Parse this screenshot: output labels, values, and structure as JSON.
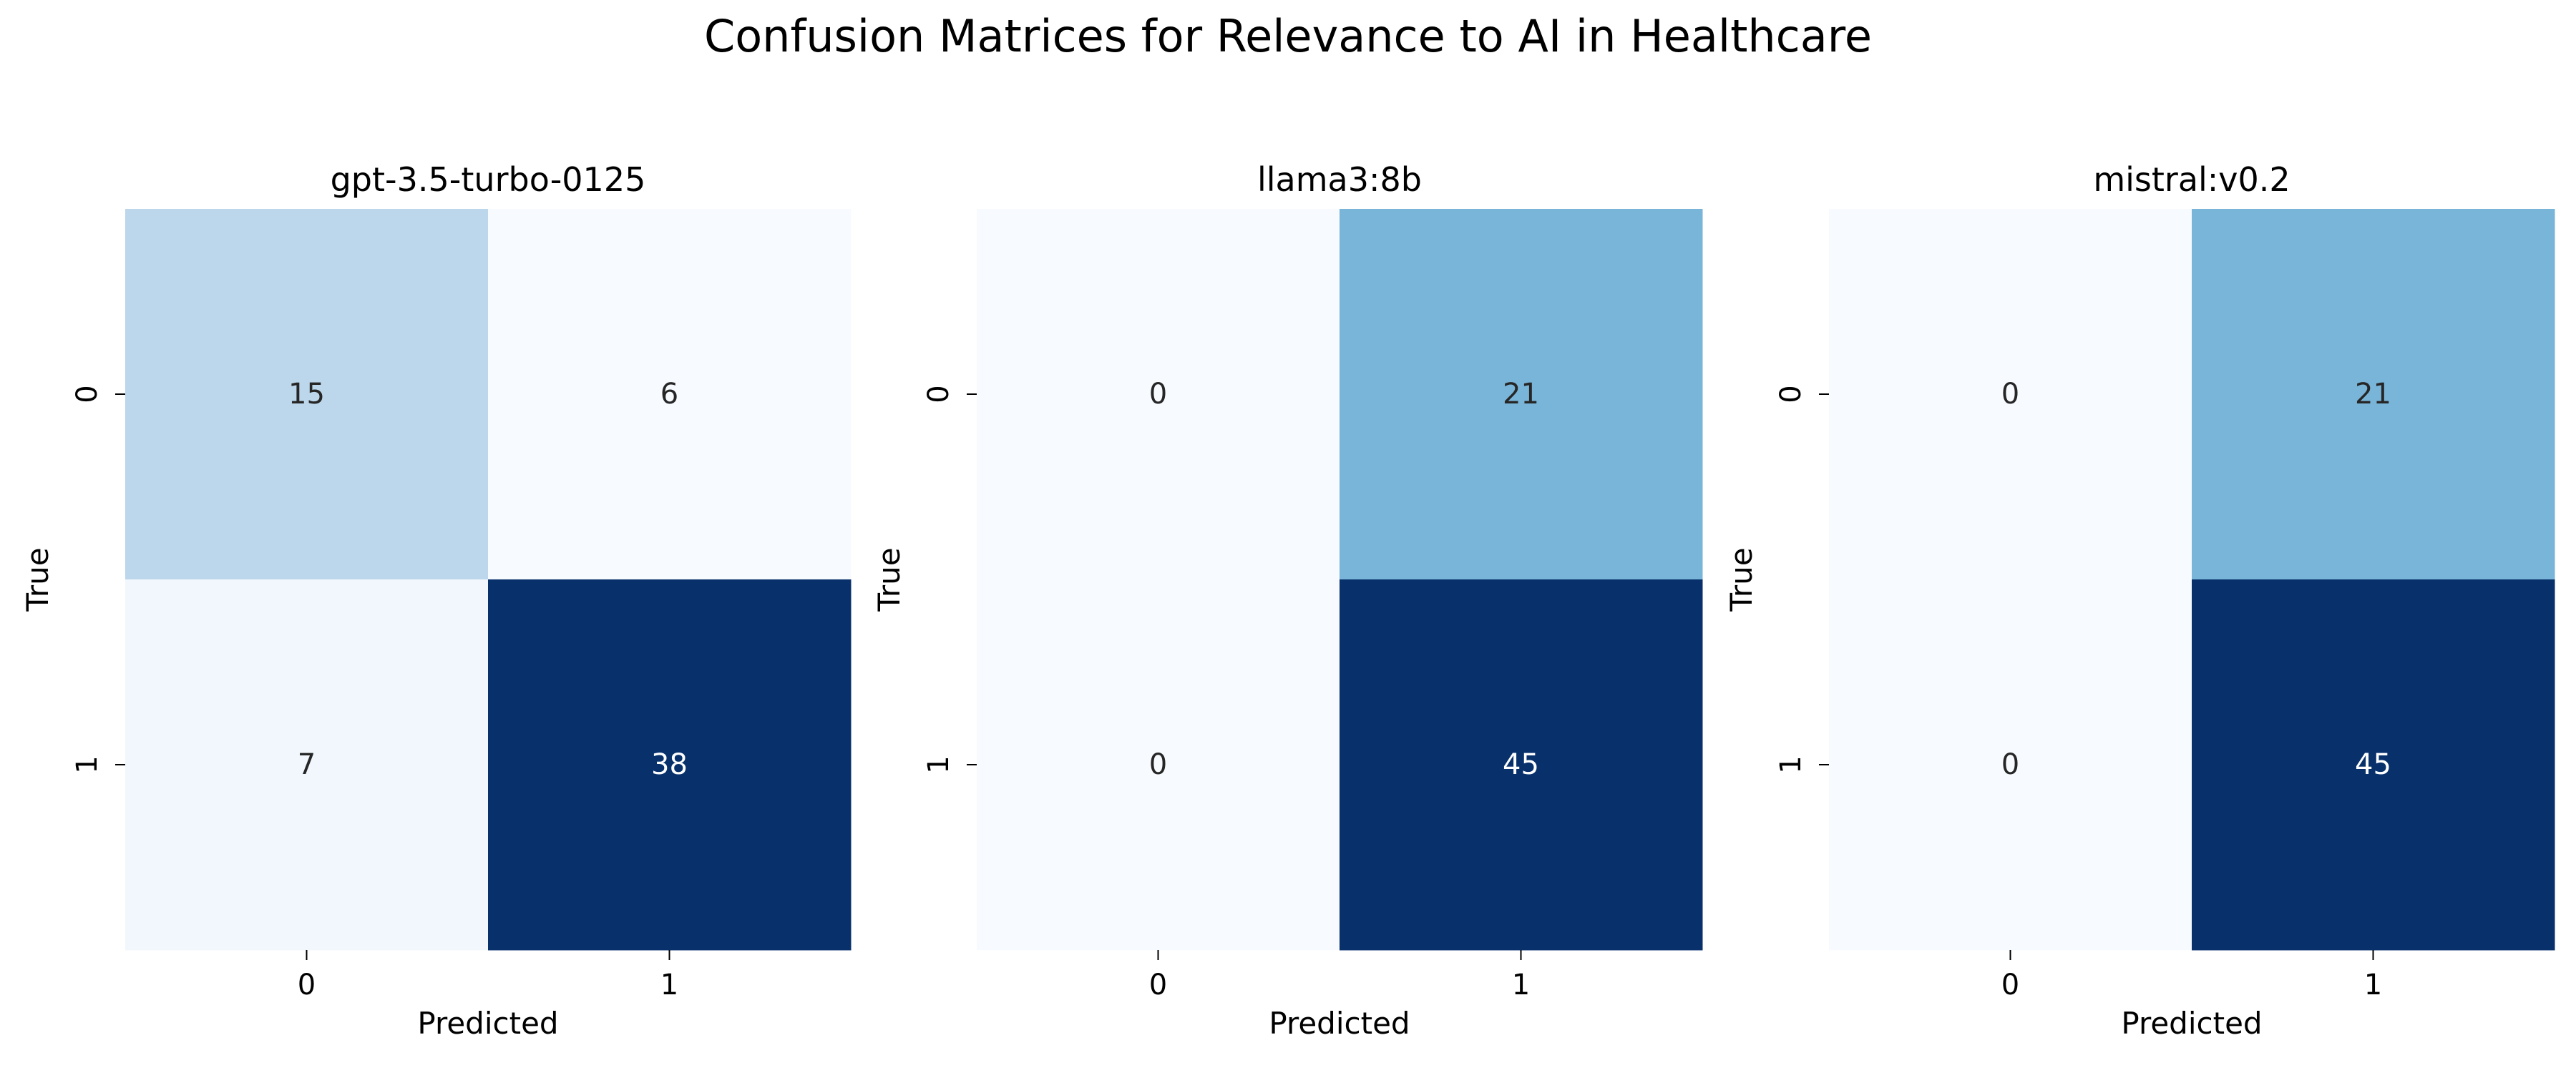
{
  "figure": {
    "title": "Confusion Matrices for Relevance to AI in Healthcare"
  },
  "chart_data": [
    {
      "type": "heatmap",
      "title": "gpt-3.5-turbo-0125",
      "xlabel": "Predicted",
      "ylabel": "True",
      "x_categories": [
        "0",
        "1"
      ],
      "y_categories": [
        "0",
        "1"
      ],
      "values": [
        [
          15,
          6
        ],
        [
          7,
          38
        ]
      ],
      "colormap": "Blues",
      "colorbar": false,
      "grid": false
    },
    {
      "type": "heatmap",
      "title": "llama3:8b",
      "xlabel": "Predicted",
      "ylabel": "True",
      "x_categories": [
        "0",
        "1"
      ],
      "y_categories": [
        "0",
        "1"
      ],
      "values": [
        [
          0,
          21
        ],
        [
          0,
          45
        ]
      ],
      "colormap": "Blues",
      "colorbar": false,
      "grid": false
    },
    {
      "type": "heatmap",
      "title": "mistral:v0.2",
      "xlabel": "Predicted",
      "ylabel": "True",
      "x_categories": [
        "0",
        "1"
      ],
      "y_categories": [
        "0",
        "1"
      ],
      "values": [
        [
          0,
          21
        ],
        [
          0,
          45
        ]
      ],
      "colormap": "Blues",
      "colorbar": false,
      "grid": false
    }
  ]
}
